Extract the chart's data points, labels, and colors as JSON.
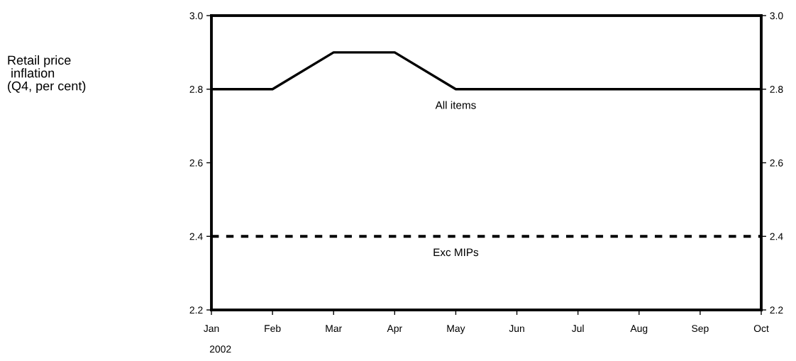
{
  "chart_data": {
    "type": "line",
    "categories": [
      "Jan",
      "Feb",
      "Mar",
      "Apr",
      "May",
      "Jun",
      "Jul",
      "Aug",
      "Sep",
      "Oct"
    ],
    "series": [
      {
        "name": "All items",
        "color": "#000000",
        "line_style": "solid",
        "values": [
          2.8,
          2.8,
          2.9,
          2.9,
          2.8,
          2.8,
          2.8,
          2.8,
          2.8,
          2.8
        ]
      },
      {
        "name": "Exc MIPs",
        "color": "#000000",
        "line_style": "dashed",
        "values": [
          2.4,
          2.4,
          2.4,
          2.4,
          2.4,
          2.4,
          2.4,
          2.4,
          2.4,
          2.4
        ]
      }
    ],
    "ylim": [
      2.2,
      3.0
    ],
    "yticks": [
      {
        "value": 2.2,
        "label": "2.2"
      },
      {
        "value": 2.4,
        "label": "2.4"
      },
      {
        "value": 2.6,
        "label": "2.6"
      },
      {
        "value": 2.8,
        "label": "2.8"
      },
      {
        "value": 3.0,
        "label": "3.0"
      }
    ],
    "y2lim": [
      2.2,
      3.0
    ],
    "y2ticks": [
      {
        "value": 2.2,
        "label": "2.2"
      },
      {
        "value": 2.4,
        "label": "2.4"
      },
      {
        "value": 2.6,
        "label": "2.6"
      },
      {
        "value": 2.8,
        "label": "2.8"
      },
      {
        "value": 3.0,
        "label": "3.0"
      }
    ],
    "annotations": [
      "Retail price\n inflation\n(Q4, per cent)",
      "2002"
    ],
    "grid": false,
    "legend": false,
    "marker": "none"
  }
}
